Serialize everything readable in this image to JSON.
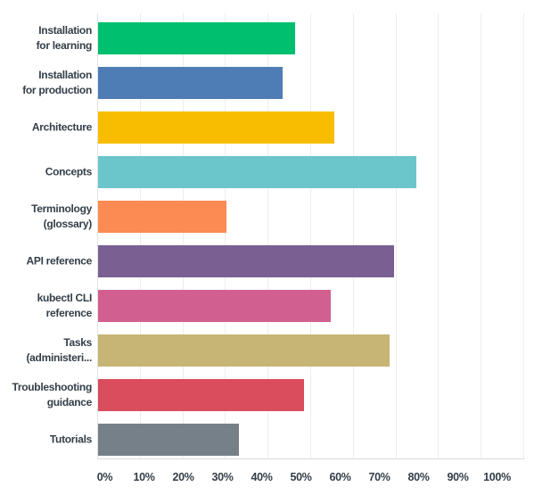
{
  "chart_data": {
    "type": "bar",
    "orientation": "horizontal",
    "categories": [
      "Installation for learning",
      "Installation for production",
      "Architecture",
      "Concepts",
      "Terminology (glossary)",
      "API reference",
      "kubectl CLI reference",
      "Tasks (administeri...",
      "Troubleshooting guidance",
      "Tutorials"
    ],
    "category_lines": [
      [
        "Installation",
        "for learning"
      ],
      [
        "Installation",
        "for production"
      ],
      [
        "Architecture"
      ],
      [
        "Concepts"
      ],
      [
        "Terminology",
        "(glossary)"
      ],
      [
        "API reference"
      ],
      [
        "kubectl CLI",
        "reference"
      ],
      [
        "Tasks",
        "(administeri..."
      ],
      [
        "Troubleshooting",
        "guidance"
      ],
      [
        "Tutorials"
      ]
    ],
    "values": [
      46.3,
      43.4,
      55.5,
      74.6,
      30.2,
      69.5,
      54.5,
      68.4,
      48.4,
      33.0
    ],
    "value_unit": "%",
    "xlim": [
      0,
      100
    ],
    "x_ticks": [
      "0%",
      "10%",
      "20%",
      "30%",
      "40%",
      "50%",
      "60%",
      "70%",
      "80%",
      "90%",
      "100%"
    ],
    "grid": "vertical",
    "legend": "none",
    "bar_colors": [
      "#00BF6F",
      "#4E7CB5",
      "#F8BD00",
      "#6BC6CB",
      "#FB8A53",
      "#7A5F92",
      "#D15F8F",
      "#C6B575",
      "#DA4D5D",
      "#768089"
    ]
  },
  "style": {
    "background": "#FFFFFF",
    "grid_color": "#EDEDED",
    "axis_color": "#D9D9D9",
    "zero_line_color": "#E3E3E3",
    "label_color": "#333E48"
  }
}
